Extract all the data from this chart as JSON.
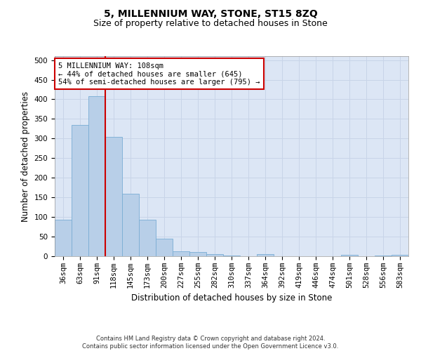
{
  "title_line1": "5, MILLENNIUM WAY, STONE, ST15 8ZQ",
  "title_line2": "Size of property relative to detached houses in Stone",
  "xlabel": "Distribution of detached houses by size in Stone",
  "ylabel": "Number of detached properties",
  "categories": [
    "36sqm",
    "63sqm",
    "91sqm",
    "118sqm",
    "145sqm",
    "173sqm",
    "200sqm",
    "227sqm",
    "255sqm",
    "282sqm",
    "310sqm",
    "337sqm",
    "364sqm",
    "392sqm",
    "419sqm",
    "446sqm",
    "474sqm",
    "501sqm",
    "528sqm",
    "556sqm",
    "583sqm"
  ],
  "values": [
    93,
    335,
    408,
    305,
    160,
    93,
    45,
    13,
    10,
    6,
    1,
    0,
    5,
    0,
    0,
    0,
    0,
    3,
    0,
    2,
    4
  ],
  "bar_color": "#b8cfe8",
  "bar_edgecolor": "#7aadd4",
  "vline_x": 2.5,
  "vline_color": "#cc0000",
  "annotation_text": "5 MILLENNIUM WAY: 108sqm\n← 44% of detached houses are smaller (645)\n54% of semi-detached houses are larger (795) →",
  "annotation_box_color": "#ffffff",
  "annotation_box_edgecolor": "#cc0000",
  "ylim": [
    0,
    510
  ],
  "yticks": [
    0,
    50,
    100,
    150,
    200,
    250,
    300,
    350,
    400,
    450,
    500
  ],
  "grid_color": "#c8d4e8",
  "background_color": "#dce6f5",
  "footer_text": "Contains HM Land Registry data © Crown copyright and database right 2024.\nContains public sector information licensed under the Open Government Licence v3.0.",
  "title_fontsize": 10,
  "subtitle_fontsize": 9,
  "tick_fontsize": 7.5,
  "label_fontsize": 8.5,
  "annotation_fontsize": 7.5
}
